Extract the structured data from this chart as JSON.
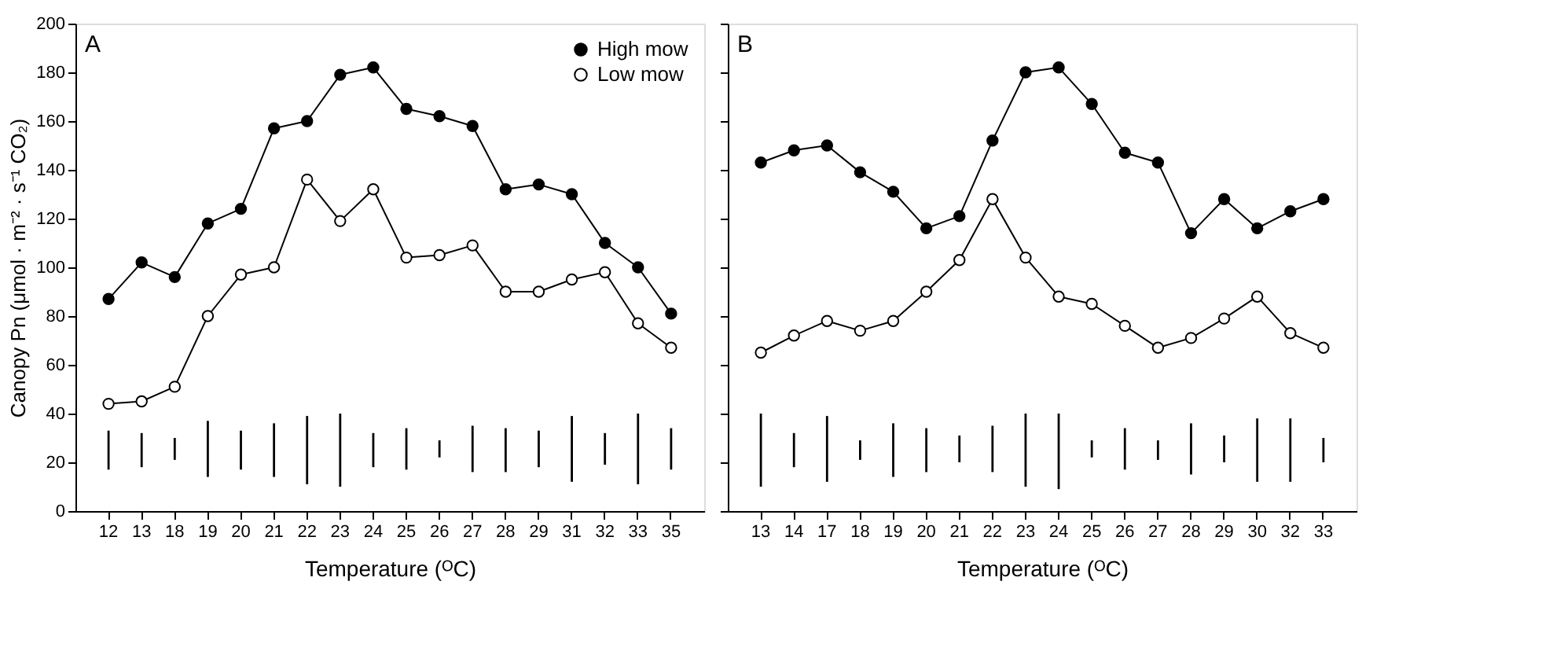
{
  "chart_data": [
    {
      "type": "line",
      "xlabel": "Temperature (ᴼC)",
      "ylabel": "Canopy Pn (μmol · m⁻² · s⁻¹ CO₂)",
      "annotations": [
        "A"
      ],
      "legend": "top right",
      "marker": "circle",
      "grid": false,
      "categories": [
        "12",
        "13",
        "18",
        "19",
        "20",
        "21",
        "22",
        "23",
        "24",
        "25",
        "26",
        "27",
        "28",
        "29",
        "31",
        "32",
        "33",
        "35"
      ],
      "ylim": [
        0,
        200
      ],
      "yticks": [
        0,
        20,
        40,
        60,
        80,
        100,
        120,
        140,
        160,
        180,
        200
      ],
      "series": [
        {
          "name": "High mow",
          "color": "#000000",
          "values": [
            87,
            102,
            96,
            118,
            124,
            157,
            160,
            179,
            182,
            165,
            162,
            158,
            132,
            134,
            130,
            110,
            100,
            81
          ]
        },
        {
          "name": "Low mow",
          "color": "#ffffff",
          "values": [
            44,
            45,
            51,
            80,
            97,
            100,
            136,
            119,
            132,
            104,
            105,
            109,
            90,
            90,
            95,
            98,
            77,
            67
          ]
        },
        {
          "color": "#000000",
          "type": "bar",
          "base": [
            17,
            18,
            21,
            14,
            17,
            14,
            11,
            10,
            18,
            17,
            22,
            16,
            16,
            18,
            12,
            19,
            11,
            17
          ],
          "values": [
            16,
            14,
            9,
            23,
            16,
            22,
            28,
            30,
            14,
            17,
            7,
            19,
            18,
            15,
            27,
            13,
            29,
            17
          ]
        }
      ]
    },
    {
      "type": "line",
      "xlabel": "Temperature (ᴼC)",
      "annotations": [
        "B"
      ],
      "marker": "circle",
      "grid": false,
      "tick_labels": "x",
      "categories": [
        "13",
        "14",
        "17",
        "18",
        "19",
        "20",
        "21",
        "22",
        "23",
        "24",
        "25",
        "26",
        "27",
        "28",
        "29",
        "30",
        "32",
        "33"
      ],
      "ylim": [
        0,
        200
      ],
      "yticks": [
        0,
        20,
        40,
        60,
        80,
        100,
        120,
        140,
        160,
        180,
        200
      ],
      "series": [
        {
          "color": "#000000",
          "values": [
            143,
            148,
            150,
            139,
            131,
            116,
            121,
            152,
            180,
            182,
            167,
            147,
            143,
            114,
            128,
            116,
            123,
            128
          ]
        },
        {
          "color": "#ffffff",
          "values": [
            65,
            72,
            78,
            74,
            78,
            90,
            103,
            128,
            104,
            88,
            85,
            76,
            67,
            71,
            79,
            88,
            73,
            67
          ]
        },
        {
          "color": "#000000",
          "type": "bar",
          "base": [
            10,
            18,
            12,
            21,
            14,
            16,
            20,
            16,
            10,
            9,
            22,
            17,
            21,
            15,
            20,
            12,
            12,
            20
          ],
          "values": [
            30,
            14,
            27,
            8,
            22,
            18,
            11,
            19,
            30,
            31,
            7,
            17,
            8,
            21,
            11,
            26,
            26,
            10
          ]
        }
      ]
    }
  ]
}
